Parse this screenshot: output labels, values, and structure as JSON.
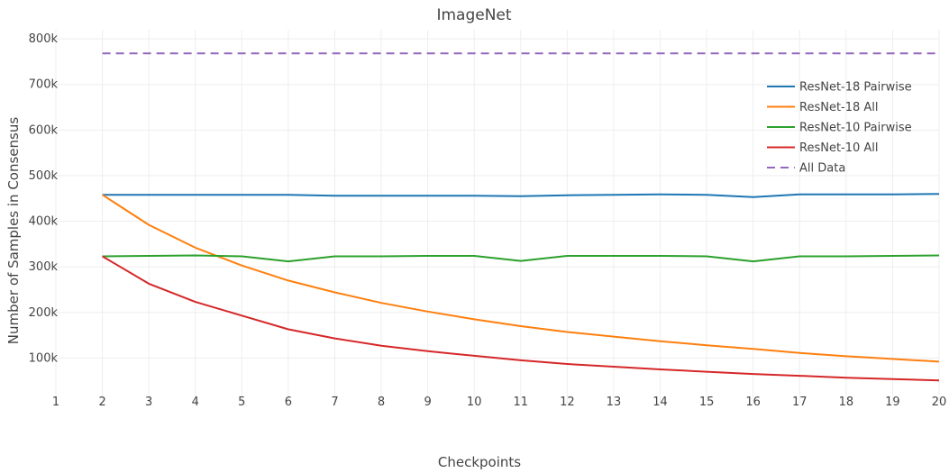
{
  "chart_data": {
    "type": "line",
    "title": "ImageNet",
    "xlabel": "Checkpoints",
    "ylabel": "Number of Samples in Consensus",
    "x": [
      1,
      2,
      3,
      4,
      5,
      6,
      7,
      8,
      9,
      10,
      11,
      12,
      13,
      14,
      15,
      16,
      17,
      18,
      19,
      20
    ],
    "xlim": [
      1,
      20
    ],
    "ylim": [
      0,
      820000
    ],
    "y_ticks": [
      100000,
      200000,
      300000,
      400000,
      500000,
      600000,
      700000,
      800000
    ],
    "y_tick_labels": [
      "100k",
      "200k",
      "300k",
      "400k",
      "500k",
      "600k",
      "700k",
      "800k"
    ],
    "grid": true,
    "legend_position": "top-right",
    "series": [
      {
        "name": "ResNet-18 Pairwise",
        "color": "#1f77b4",
        "dash": "solid",
        "x": [
          2,
          3,
          4,
          5,
          6,
          7,
          8,
          9,
          10,
          11,
          12,
          13,
          14,
          15,
          16,
          17,
          18,
          19,
          20
        ],
        "values": [
          458000,
          458000,
          458000,
          458000,
          458000,
          456000,
          456000,
          456000,
          456000,
          455000,
          457000,
          458000,
          459000,
          458000,
          453000,
          459000,
          459000,
          459000,
          460000
        ]
      },
      {
        "name": "ResNet-18 All",
        "color": "#ff7f0e",
        "dash": "solid",
        "x": [
          2,
          3,
          4,
          5,
          6,
          7,
          8,
          9,
          10,
          11,
          12,
          13,
          14,
          15,
          16,
          17,
          18,
          19,
          20
        ],
        "values": [
          458000,
          392000,
          342000,
          303000,
          270000,
          244000,
          221000,
          202000,
          185000,
          170000,
          157000,
          147000,
          137000,
          128000,
          120000,
          111000,
          104000,
          98000,
          92000
        ]
      },
      {
        "name": "ResNet-10 Pairwise",
        "color": "#2ca02c",
        "dash": "solid",
        "x": [
          2,
          3,
          4,
          5,
          6,
          7,
          8,
          9,
          10,
          11,
          12,
          13,
          14,
          15,
          16,
          17,
          18,
          19,
          20
        ],
        "values": [
          323000,
          324000,
          325000,
          323000,
          312000,
          323000,
          323000,
          324000,
          324000,
          313000,
          324000,
          324000,
          324000,
          323000,
          312000,
          323000,
          323000,
          324000,
          325000
        ]
      },
      {
        "name": "ResNet-10 All",
        "color": "#d62728",
        "dash": "solid",
        "x": [
          2,
          3,
          4,
          5,
          6,
          7,
          8,
          9,
          10,
          11,
          12,
          13,
          14,
          15,
          16,
          17,
          18,
          19,
          20
        ],
        "values": [
          323000,
          263000,
          223000,
          193000,
          163000,
          143000,
          127000,
          115000,
          105000,
          95000,
          87000,
          81000,
          75000,
          70000,
          65000,
          61000,
          57000,
          54000,
          51000
        ]
      },
      {
        "name": "All Data",
        "color": "#9467bd",
        "dash": "dash",
        "x": [
          2,
          3,
          4,
          5,
          6,
          7,
          8,
          9,
          10,
          11,
          12,
          13,
          14,
          15,
          16,
          17,
          18,
          19,
          20
        ],
        "values": [
          768000,
          768000,
          768000,
          768000,
          768000,
          768000,
          768000,
          768000,
          768000,
          768000,
          768000,
          768000,
          768000,
          768000,
          768000,
          768000,
          768000,
          768000,
          768000
        ]
      }
    ]
  }
}
